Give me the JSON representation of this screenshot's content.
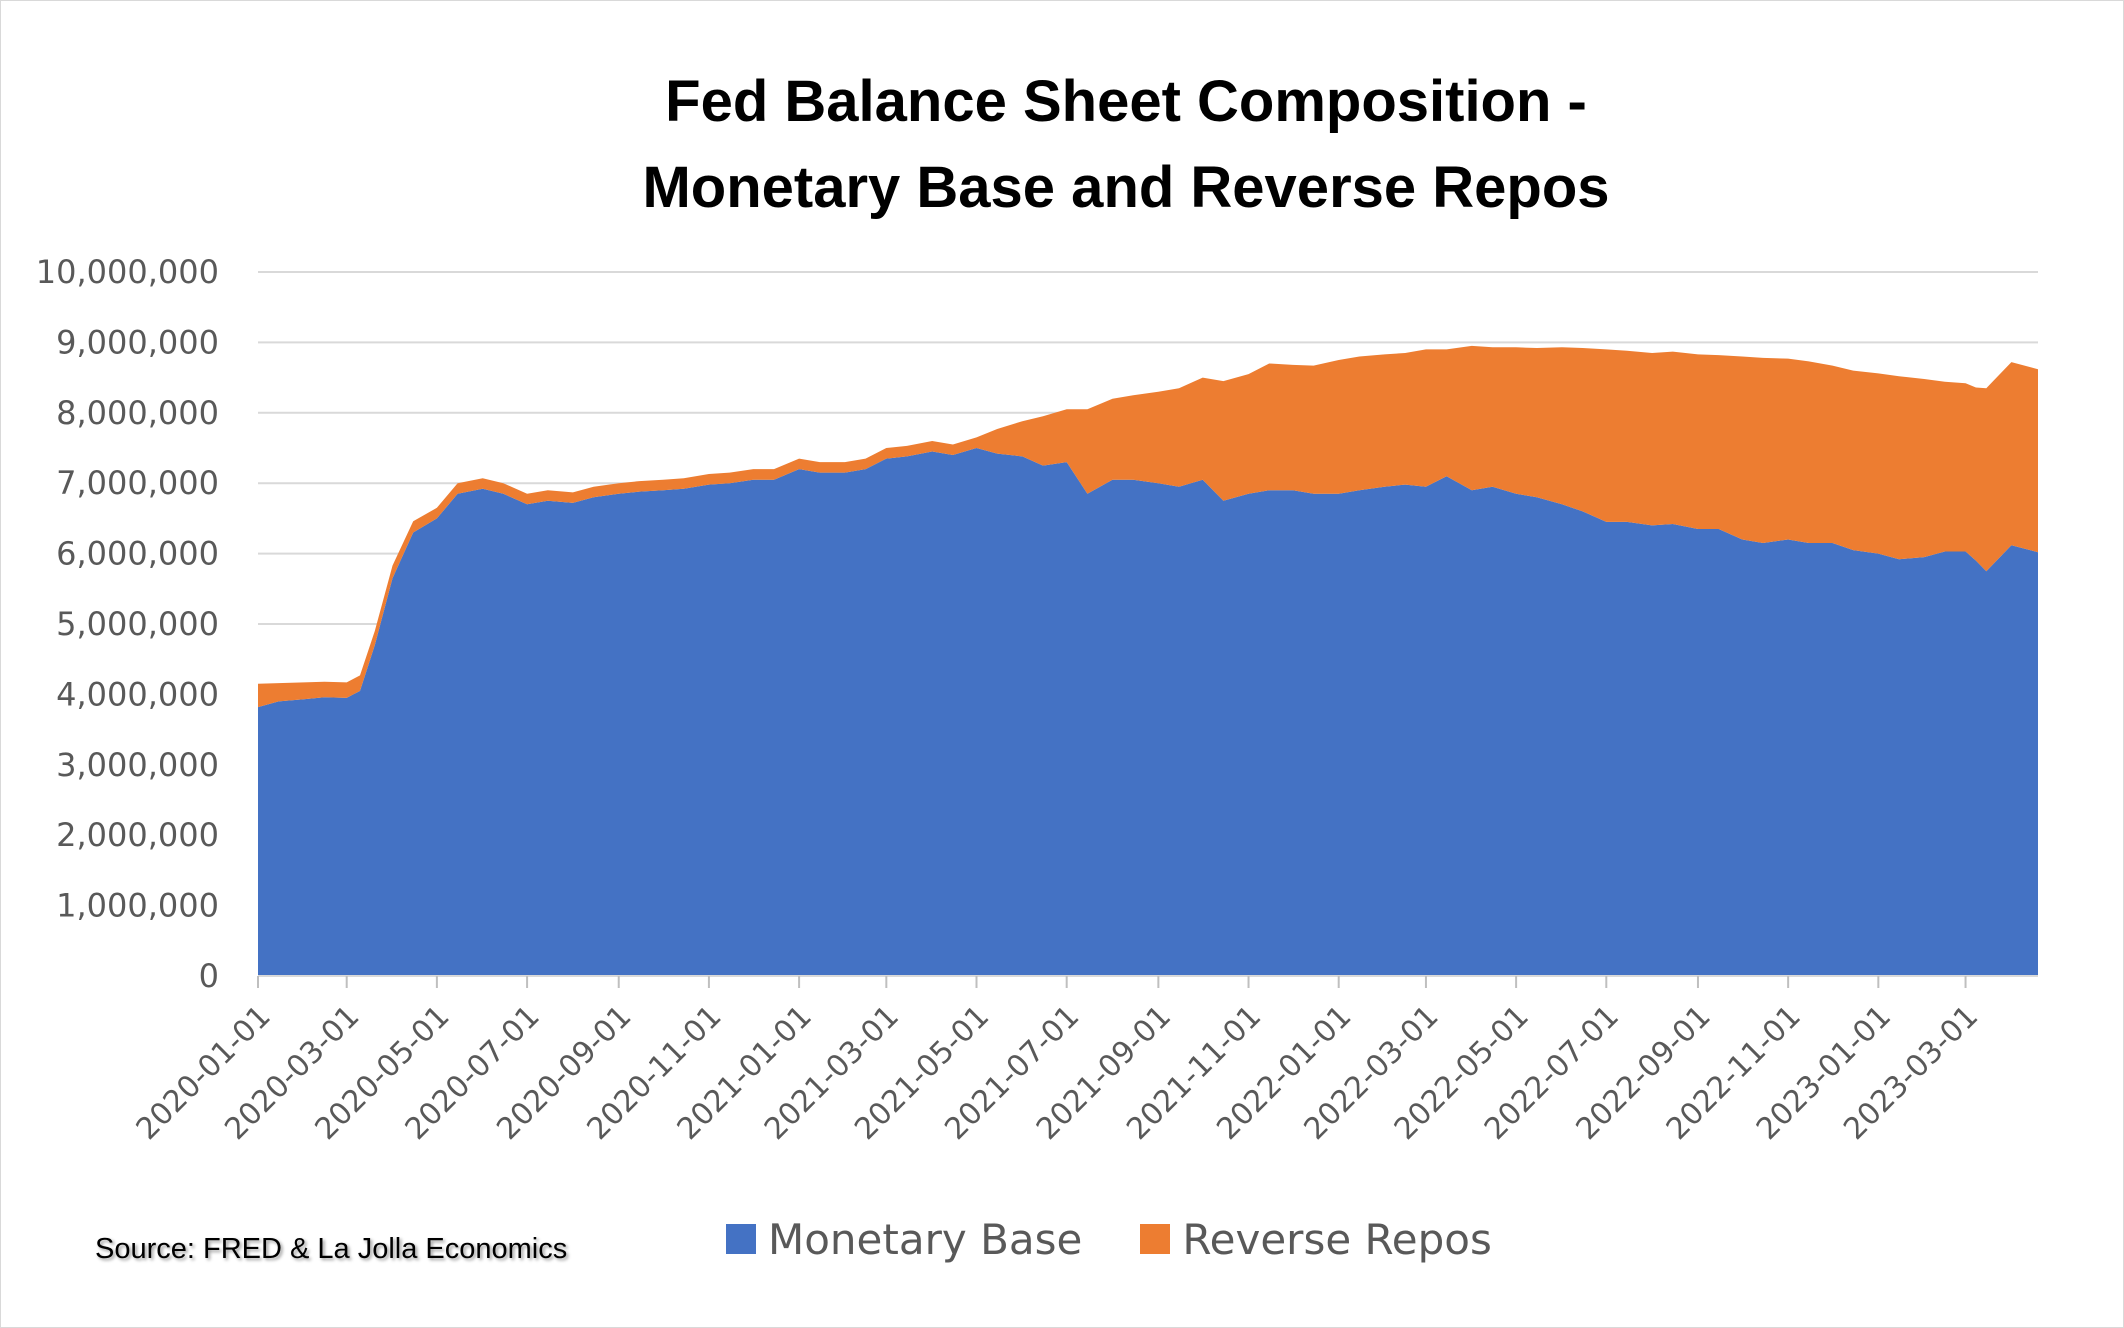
{
  "chart_data": {
    "type": "area",
    "stacked": true,
    "title": [
      "Fed Balance Sheet Composition -",
      "Monetary Base and Reverse Repos"
    ],
    "xlabel": "",
    "ylabel": "",
    "ylim": [
      0,
      10000000
    ],
    "y_ticks": [
      "0",
      "1,000,000",
      "2,000,000",
      "3,000,000",
      "4,000,000",
      "5,000,000",
      "6,000,000",
      "7,000,000",
      "8,000,000",
      "9,000,000",
      "10,000,000"
    ],
    "x_ticks": [
      "2020-01-01",
      "2020-03-01",
      "2020-05-01",
      "2020-07-01",
      "2020-09-01",
      "2020-11-01",
      "2021-01-01",
      "2021-03-01",
      "2021-05-01",
      "2021-07-01",
      "2021-09-01",
      "2021-11-01",
      "2022-01-01",
      "2022-03-01",
      "2022-05-01",
      "2022-07-01",
      "2022-09-01",
      "2022-11-01",
      "2023-01-01",
      "2023-03-01"
    ],
    "x_start": "2020-01-01",
    "x_end": "2023-04-19",
    "grid": true,
    "legend_position": "bottom",
    "x": [
      "2020-01-01",
      "2020-01-15",
      "2020-02-01",
      "2020-02-15",
      "2020-03-01",
      "2020-03-10",
      "2020-03-20",
      "2020-04-01",
      "2020-04-15",
      "2020-05-01",
      "2020-05-15",
      "2020-06-01",
      "2020-06-15",
      "2020-07-01",
      "2020-07-15",
      "2020-08-01",
      "2020-08-15",
      "2020-09-01",
      "2020-09-15",
      "2020-10-01",
      "2020-10-15",
      "2020-11-01",
      "2020-11-15",
      "2020-12-01",
      "2020-12-15",
      "2021-01-01",
      "2021-01-15",
      "2021-02-01",
      "2021-02-15",
      "2021-03-01",
      "2021-03-15",
      "2021-04-01",
      "2021-04-15",
      "2021-05-01",
      "2021-05-15",
      "2021-06-01",
      "2021-06-15",
      "2021-07-01",
      "2021-07-15",
      "2021-08-01",
      "2021-08-15",
      "2021-09-01",
      "2021-09-15",
      "2021-10-01",
      "2021-10-15",
      "2021-11-01",
      "2021-11-15",
      "2021-12-01",
      "2021-12-15",
      "2022-01-01",
      "2022-01-15",
      "2022-02-01",
      "2022-02-15",
      "2022-03-01",
      "2022-03-15",
      "2022-04-01",
      "2022-04-15",
      "2022-05-01",
      "2022-05-15",
      "2022-06-01",
      "2022-06-15",
      "2022-07-01",
      "2022-07-15",
      "2022-08-01",
      "2022-08-15",
      "2022-09-01",
      "2022-09-15",
      "2022-10-01",
      "2022-10-15",
      "2022-11-01",
      "2022-11-15",
      "2022-12-01",
      "2022-12-15",
      "2023-01-01",
      "2023-01-15",
      "2023-02-01",
      "2023-02-15",
      "2023-03-01",
      "2023-03-08",
      "2023-03-15",
      "2023-04-01",
      "2023-04-19"
    ],
    "series": [
      {
        "name": "Monetary Base",
        "color": "#4472C4",
        "values": [
          3820000,
          3900000,
          3930000,
          3960000,
          3950000,
          4050000,
          4700000,
          5650000,
          6300000,
          6500000,
          6850000,
          6920000,
          6850000,
          6700000,
          6750000,
          6720000,
          6800000,
          6850000,
          6880000,
          6900000,
          6920000,
          6980000,
          7000000,
          7050000,
          7050000,
          7200000,
          7150000,
          7150000,
          7200000,
          7350000,
          7380000,
          7450000,
          7400000,
          7500000,
          7420000,
          7380000,
          7250000,
          7300000,
          6850000,
          7050000,
          7050000,
          7000000,
          6950000,
          7050000,
          6750000,
          6850000,
          6900000,
          6900000,
          6850000,
          6850000,
          6900000,
          6950000,
          6980000,
          6950000,
          7100000,
          6900000,
          6950000,
          6850000,
          6800000,
          6700000,
          6600000,
          6450000,
          6450000,
          6400000,
          6420000,
          6350000,
          6350000,
          6200000,
          6150000,
          6200000,
          6150000,
          6150000,
          6050000,
          6000000,
          5920000,
          5950000,
          6030000,
          6030000,
          5900000,
          5750000,
          6120000,
          6020000
        ]
      },
      {
        "name": "Reverse Repos",
        "color": "#ED7D31",
        "values": [
          330000,
          260000,
          240000,
          220000,
          220000,
          220000,
          200000,
          180000,
          160000,
          150000,
          150000,
          150000,
          150000,
          150000,
          150000,
          150000,
          150000,
          150000,
          150000,
          150000,
          150000,
          150000,
          150000,
          150000,
          150000,
          150000,
          150000,
          150000,
          150000,
          150000,
          150000,
          150000,
          150000,
          150000,
          350000,
          500000,
          700000,
          750000,
          1200000,
          1150000,
          1200000,
          1300000,
          1400000,
          1450000,
          1700000,
          1700000,
          1800000,
          1780000,
          1820000,
          1900000,
          1900000,
          1880000,
          1870000,
          1950000,
          1800000,
          2050000,
          1980000,
          2080000,
          2120000,
          2230000,
          2320000,
          2450000,
          2430000,
          2450000,
          2450000,
          2480000,
          2470000,
          2600000,
          2630000,
          2570000,
          2580000,
          2520000,
          2550000,
          2560000,
          2600000,
          2530000,
          2410000,
          2390000,
          2460000,
          2600000,
          2600000,
          2600000
        ]
      }
    ]
  },
  "legend": {
    "items": [
      {
        "label": "Monetary Base",
        "color": "#4472C4"
      },
      {
        "label": "Reverse Repos",
        "color": "#ED7D31"
      }
    ]
  },
  "source": "Source: FRED & La Jolla Economics"
}
